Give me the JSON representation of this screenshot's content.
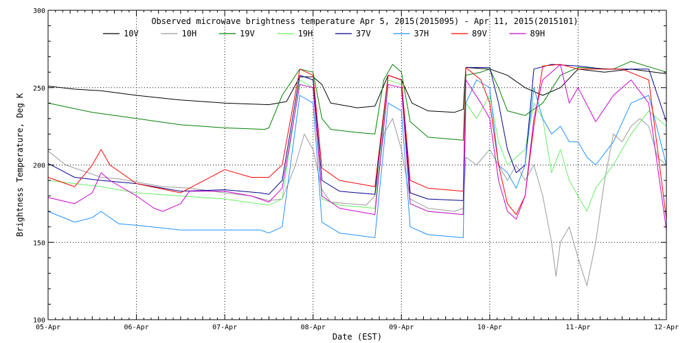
{
  "chart_data": {
    "type": "line",
    "title": "Observed microwave brightness temperature Apr  5, 2015(2015095) - Apr 11, 2015(2015101)",
    "xlabel": "Date (EST)",
    "ylabel": "Brightness Temperature, Deg K",
    "xlim": [
      "2015-04-05 00:00",
      "2015-04-12 00:00"
    ],
    "ylim": [
      100,
      300
    ],
    "x_tick_labels": [
      "05-Apr",
      "06-Apr",
      "07-Apr",
      "08-Apr",
      "09-Apr",
      "10-Apr",
      "11-Apr",
      "12-Apr"
    ],
    "y_tick_labels": [
      "100",
      "150",
      "200",
      "250",
      "300"
    ],
    "grid": "dotted",
    "legend_position": "top",
    "series": [
      {
        "name": "10V",
        "color": "#000000",
        "points": [
          [
            0.0,
            251
          ],
          [
            0.3,
            249
          ],
          [
            0.6,
            248
          ],
          [
            1.0,
            245
          ],
          [
            1.5,
            242
          ],
          [
            2.0,
            240
          ],
          [
            2.5,
            239
          ],
          [
            2.7,
            241
          ],
          [
            2.85,
            257
          ],
          [
            3.0,
            257
          ],
          [
            3.1,
            252
          ],
          [
            3.2,
            240
          ],
          [
            3.5,
            237
          ],
          [
            3.7,
            238
          ],
          [
            3.85,
            258
          ],
          [
            4.0,
            255
          ],
          [
            4.12,
            240
          ],
          [
            4.3,
            235
          ],
          [
            4.6,
            234
          ],
          [
            4.7,
            236
          ],
          [
            4.73,
            263
          ],
          [
            5.0,
            262
          ],
          [
            5.2,
            258
          ],
          [
            5.4,
            250
          ],
          [
            5.6,
            245
          ],
          [
            5.8,
            250
          ],
          [
            6.0,
            262
          ],
          [
            6.3,
            260
          ],
          [
            6.6,
            262
          ],
          [
            7.0,
            259
          ]
        ]
      },
      {
        "name": "10H",
        "color": "#999999",
        "points": [
          [
            0.0,
            209
          ],
          [
            0.2,
            200
          ],
          [
            0.4,
            196
          ],
          [
            0.6,
            192
          ],
          [
            0.8,
            191
          ],
          [
            1.0,
            189
          ],
          [
            1.3,
            186
          ],
          [
            1.6,
            185
          ],
          [
            2.0,
            182
          ],
          [
            2.3,
            180
          ],
          [
            2.5,
            177
          ],
          [
            2.65,
            178
          ],
          [
            2.8,
            200
          ],
          [
            2.9,
            220
          ],
          [
            3.0,
            210
          ],
          [
            3.1,
            184
          ],
          [
            3.2,
            176
          ],
          [
            3.6,
            174
          ],
          [
            3.7,
            180
          ],
          [
            3.8,
            220
          ],
          [
            3.9,
            230
          ],
          [
            4.0,
            210
          ],
          [
            4.1,
            178
          ],
          [
            4.3,
            172
          ],
          [
            4.6,
            170
          ],
          [
            4.7,
            172
          ],
          [
            4.73,
            205
          ],
          [
            4.85,
            200
          ],
          [
            5.0,
            210
          ],
          [
            5.1,
            200
          ],
          [
            5.2,
            190
          ],
          [
            5.3,
            200
          ],
          [
            5.4,
            190
          ],
          [
            5.5,
            200
          ],
          [
            5.6,
            180
          ],
          [
            5.7,
            150
          ],
          [
            5.75,
            128
          ],
          [
            5.8,
            150
          ],
          [
            5.9,
            160
          ],
          [
            6.0,
            140
          ],
          [
            6.1,
            122
          ],
          [
            6.2,
            150
          ],
          [
            6.3,
            190
          ],
          [
            6.4,
            220
          ],
          [
            6.5,
            215
          ],
          [
            6.6,
            225
          ],
          [
            6.7,
            230
          ],
          [
            6.8,
            225
          ],
          [
            6.9,
            205
          ],
          [
            7.0,
            200
          ]
        ]
      },
      {
        "name": "19V",
        "color": "#008000",
        "points": [
          [
            0.0,
            240
          ],
          [
            0.5,
            234
          ],
          [
            1.0,
            230
          ],
          [
            1.5,
            226
          ],
          [
            2.0,
            224
          ],
          [
            2.45,
            223
          ],
          [
            2.5,
            224
          ],
          [
            2.65,
            245
          ],
          [
            2.85,
            262
          ],
          [
            3.0,
            260
          ],
          [
            3.1,
            230
          ],
          [
            3.2,
            223
          ],
          [
            3.5,
            221
          ],
          [
            3.7,
            220
          ],
          [
            3.8,
            255
          ],
          [
            3.9,
            265
          ],
          [
            4.0,
            260
          ],
          [
            4.1,
            228
          ],
          [
            4.3,
            218
          ],
          [
            4.7,
            216
          ],
          [
            4.73,
            258
          ],
          [
            4.9,
            260
          ],
          [
            5.0,
            262
          ],
          [
            5.1,
            250
          ],
          [
            5.2,
            235
          ],
          [
            5.4,
            232
          ],
          [
            5.6,
            240
          ],
          [
            5.8,
            258
          ],
          [
            6.0,
            263
          ],
          [
            6.4,
            262
          ],
          [
            6.6,
            267
          ],
          [
            7.0,
            260
          ]
        ]
      },
      {
        "name": "19H",
        "color": "#66ee66",
        "points": [
          [
            0.0,
            190
          ],
          [
            0.3,
            188
          ],
          [
            0.6,
            186
          ],
          [
            1.0,
            182
          ],
          [
            1.5,
            180
          ],
          [
            2.0,
            178
          ],
          [
            2.5,
            174
          ],
          [
            2.65,
            178
          ],
          [
            2.85,
            255
          ],
          [
            3.0,
            250
          ],
          [
            3.1,
            178
          ],
          [
            3.3,
            174
          ],
          [
            3.7,
            172
          ],
          [
            3.85,
            255
          ],
          [
            4.0,
            252
          ],
          [
            4.1,
            175
          ],
          [
            4.3,
            170
          ],
          [
            4.7,
            168
          ],
          [
            4.73,
            240
          ],
          [
            4.85,
            230
          ],
          [
            5.0,
            245
          ],
          [
            5.1,
            215
          ],
          [
            5.2,
            200
          ],
          [
            5.4,
            210
          ],
          [
            5.5,
            240
          ],
          [
            5.6,
            230
          ],
          [
            5.7,
            195
          ],
          [
            5.8,
            210
          ],
          [
            5.9,
            190
          ],
          [
            6.0,
            180
          ],
          [
            6.1,
            170
          ],
          [
            6.2,
            185
          ],
          [
            6.4,
            200
          ],
          [
            6.6,
            220
          ],
          [
            6.8,
            235
          ],
          [
            7.0,
            225
          ]
        ]
      },
      {
        "name": "37V",
        "color": "#00008b",
        "points": [
          [
            0.0,
            201
          ],
          [
            0.3,
            192
          ],
          [
            0.6,
            190
          ],
          [
            1.0,
            188
          ],
          [
            1.5,
            183
          ],
          [
            2.0,
            184
          ],
          [
            2.4,
            182
          ],
          [
            2.5,
            181
          ],
          [
            2.65,
            190
          ],
          [
            2.85,
            258
          ],
          [
            3.0,
            255
          ],
          [
            3.1,
            190
          ],
          [
            3.3,
            183
          ],
          [
            3.7,
            181
          ],
          [
            3.85,
            258
          ],
          [
            4.0,
            255
          ],
          [
            4.1,
            182
          ],
          [
            4.3,
            178
          ],
          [
            4.7,
            177
          ],
          [
            4.73,
            263
          ],
          [
            5.0,
            263
          ],
          [
            5.1,
            240
          ],
          [
            5.2,
            210
          ],
          [
            5.3,
            195
          ],
          [
            5.4,
            200
          ],
          [
            5.5,
            262
          ],
          [
            5.7,
            265
          ],
          [
            6.0,
            264
          ],
          [
            6.3,
            262
          ],
          [
            6.6,
            262
          ],
          [
            6.8,
            262
          ],
          [
            7.0,
            228
          ]
        ]
      },
      {
        "name": "37H",
        "color": "#1e90ff",
        "points": [
          [
            0.0,
            170
          ],
          [
            0.3,
            163
          ],
          [
            0.5,
            166
          ],
          [
            0.6,
            170
          ],
          [
            0.8,
            162
          ],
          [
            1.0,
            161
          ],
          [
            1.5,
            158
          ],
          [
            2.0,
            158
          ],
          [
            2.4,
            158
          ],
          [
            2.5,
            156
          ],
          [
            2.65,
            160
          ],
          [
            2.85,
            245
          ],
          [
            3.0,
            240
          ],
          [
            3.1,
            163
          ],
          [
            3.3,
            156
          ],
          [
            3.7,
            153
          ],
          [
            3.85,
            240
          ],
          [
            4.0,
            235
          ],
          [
            4.1,
            160
          ],
          [
            4.3,
            155
          ],
          [
            4.7,
            153
          ],
          [
            4.73,
            240
          ],
          [
            4.85,
            255
          ],
          [
            5.0,
            250
          ],
          [
            5.1,
            200
          ],
          [
            5.2,
            195
          ],
          [
            5.3,
            185
          ],
          [
            5.4,
            200
          ],
          [
            5.5,
            250
          ],
          [
            5.6,
            230
          ],
          [
            5.7,
            220
          ],
          [
            5.8,
            225
          ],
          [
            5.9,
            215
          ],
          [
            6.0,
            215
          ],
          [
            6.1,
            205
          ],
          [
            6.2,
            200
          ],
          [
            6.4,
            215
          ],
          [
            6.6,
            240
          ],
          [
            6.8,
            245
          ],
          [
            7.0,
            200
          ]
        ]
      },
      {
        "name": "89V",
        "color": "#ff0000",
        "points": [
          [
            0.0,
            192
          ],
          [
            0.3,
            186
          ],
          [
            0.5,
            200
          ],
          [
            0.6,
            210
          ],
          [
            0.7,
            200
          ],
          [
            1.0,
            188
          ],
          [
            1.5,
            182
          ],
          [
            2.0,
            197
          ],
          [
            2.3,
            192
          ],
          [
            2.5,
            192
          ],
          [
            2.65,
            200
          ],
          [
            2.85,
            262
          ],
          [
            3.0,
            258
          ],
          [
            3.1,
            198
          ],
          [
            3.3,
            190
          ],
          [
            3.7,
            186
          ],
          [
            3.85,
            258
          ],
          [
            4.0,
            255
          ],
          [
            4.1,
            190
          ],
          [
            4.3,
            185
          ],
          [
            4.7,
            183
          ],
          [
            4.73,
            263
          ],
          [
            4.9,
            255
          ],
          [
            5.0,
            240
          ],
          [
            5.1,
            200
          ],
          [
            5.2,
            175
          ],
          [
            5.3,
            168
          ],
          [
            5.4,
            180
          ],
          [
            5.5,
            225
          ],
          [
            5.6,
            264
          ],
          [
            5.8,
            265
          ],
          [
            6.0,
            262
          ],
          [
            6.2,
            262
          ],
          [
            6.5,
            262
          ],
          [
            6.8,
            255
          ],
          [
            7.0,
            165
          ]
        ]
      },
      {
        "name": "89H",
        "color": "#cc00cc",
        "points": [
          [
            0.0,
            179
          ],
          [
            0.3,
            175
          ],
          [
            0.5,
            182
          ],
          [
            0.6,
            195
          ],
          [
            0.7,
            190
          ],
          [
            1.0,
            180
          ],
          [
            1.2,
            172
          ],
          [
            1.3,
            170
          ],
          [
            1.5,
            175
          ],
          [
            1.6,
            183
          ],
          [
            2.0,
            183
          ],
          [
            2.3,
            180
          ],
          [
            2.5,
            176
          ],
          [
            2.65,
            185
          ],
          [
            2.85,
            252
          ],
          [
            3.0,
            250
          ],
          [
            3.1,
            180
          ],
          [
            3.3,
            172
          ],
          [
            3.7,
            168
          ],
          [
            3.85,
            252
          ],
          [
            4.0,
            250
          ],
          [
            4.1,
            175
          ],
          [
            4.3,
            170
          ],
          [
            4.7,
            168
          ],
          [
            4.73,
            255
          ],
          [
            4.9,
            240
          ],
          [
            5.0,
            230
          ],
          [
            5.1,
            190
          ],
          [
            5.2,
            170
          ],
          [
            5.3,
            165
          ],
          [
            5.4,
            180
          ],
          [
            5.5,
            230
          ],
          [
            5.6,
            255
          ],
          [
            5.8,
            265
          ],
          [
            5.9,
            240
          ],
          [
            6.0,
            250
          ],
          [
            6.2,
            228
          ],
          [
            6.4,
            245
          ],
          [
            6.6,
            255
          ],
          [
            6.8,
            240
          ],
          [
            7.0,
            158
          ]
        ]
      }
    ]
  }
}
